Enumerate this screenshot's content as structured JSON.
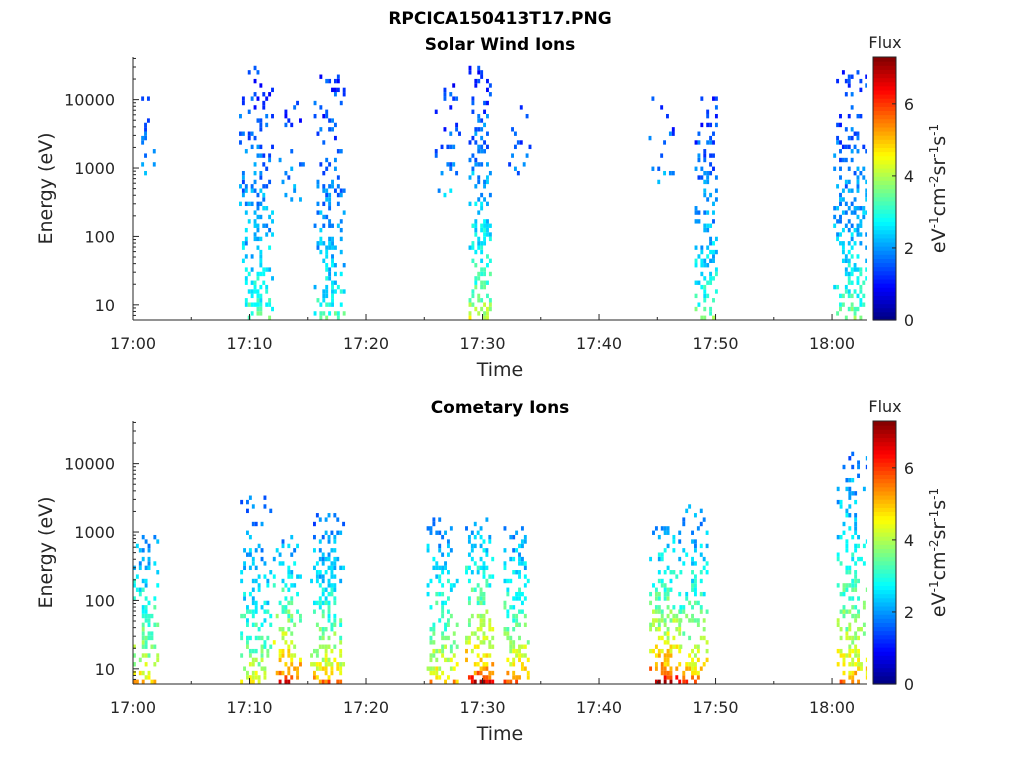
{
  "figure_title": "RPCICA150413T17.PNG",
  "chart_data": [
    {
      "type": "heatmap",
      "title": "Solar Wind Ions",
      "xlabel": "Time",
      "ylabel": "Energy (eV)",
      "x_ticks": [
        "17:00",
        "17:10",
        "17:20",
        "17:30",
        "17:40",
        "17:50",
        "18:00"
      ],
      "x_range_minutes": [
        0,
        63
      ],
      "y_scale": "log",
      "y_ticks": [
        "10",
        "100",
        "1000",
        "10000"
      ],
      "y_range": [
        6,
        42000
      ],
      "colorbar": {
        "label": "Flux",
        "unit_label": "eV-1cm-2sr-1s-1",
        "ticks": [
          "0",
          "2",
          "4",
          "6"
        ],
        "range": [
          0,
          7.3
        ]
      },
      "colormap": "jet",
      "bursts": [
        {
          "t_center_min": 1.0,
          "t_width_min": 1.6,
          "e_low": 300,
          "e_high": 12000,
          "flux_low": 3.2,
          "flux_high": 1.2,
          "density": 0.18
        },
        {
          "t_center_min": 10.6,
          "t_width_min": 3.0,
          "e_low": 6,
          "e_high": 30000,
          "flux_low": 3.6,
          "flux_high": 1.2,
          "density": 0.45
        },
        {
          "t_center_min": 13.5,
          "t_width_min": 2.5,
          "e_low": 300,
          "e_high": 12000,
          "flux_low": 2.5,
          "flux_high": 1.2,
          "density": 0.15
        },
        {
          "t_center_min": 16.8,
          "t_width_min": 2.6,
          "e_low": 6,
          "e_high": 25000,
          "flux_low": 3.4,
          "flux_high": 1.2,
          "density": 0.45
        },
        {
          "t_center_min": 27.0,
          "t_width_min": 2.2,
          "e_low": 300,
          "e_high": 15000,
          "flux_low": 2.6,
          "flux_high": 1.2,
          "density": 0.25
        },
        {
          "t_center_min": 29.8,
          "t_width_min": 2.0,
          "e_low": 6,
          "e_high": 40000,
          "flux_low": 4.4,
          "flux_high": 1.2,
          "density": 0.6
        },
        {
          "t_center_min": 33.2,
          "t_width_min": 2.0,
          "e_low": 600,
          "e_high": 8000,
          "flux_low": 2.0,
          "flux_high": 1.2,
          "density": 0.25
        },
        {
          "t_center_min": 45.5,
          "t_width_min": 3.0,
          "e_low": 500,
          "e_high": 12000,
          "flux_low": 2.4,
          "flux_high": 1.2,
          "density": 0.15
        },
        {
          "t_center_min": 49.2,
          "t_width_min": 2.0,
          "e_low": 6,
          "e_high": 10000,
          "flux_low": 3.8,
          "flux_high": 1.2,
          "density": 0.55
        },
        {
          "t_center_min": 61.6,
          "t_width_min": 3.0,
          "e_low": 6,
          "e_high": 25000,
          "flux_low": 3.8,
          "flux_high": 1.2,
          "density": 0.55
        }
      ]
    },
    {
      "type": "heatmap",
      "title": "Cometary Ions",
      "xlabel": "Time",
      "ylabel": "Energy (eV)",
      "x_ticks": [
        "17:00",
        "17:10",
        "17:20",
        "17:30",
        "17:40",
        "17:50",
        "18:00"
      ],
      "x_range_minutes": [
        0,
        63
      ],
      "y_scale": "log",
      "y_ticks": [
        "10",
        "100",
        "1000",
        "10000"
      ],
      "y_range": [
        6,
        42000
      ],
      "colorbar": {
        "label": "Flux",
        "unit_label": "eV-1cm-2sr-1s-1",
        "ticks": [
          "0",
          "2",
          "4",
          "6"
        ],
        "range": [
          0,
          7.3
        ]
      },
      "colormap": "jet",
      "bursts": [
        {
          "t_center_min": 1.1,
          "t_width_min": 2.2,
          "e_low": 6,
          "e_high": 900,
          "flux_low": 5.2,
          "flux_high": 2.0,
          "density": 0.55
        },
        {
          "t_center_min": 10.5,
          "t_width_min": 2.6,
          "e_low": 6,
          "e_high": 3000,
          "flux_low": 4.8,
          "flux_high": 1.6,
          "density": 0.55
        },
        {
          "t_center_min": 13.2,
          "t_width_min": 2.4,
          "e_low": 6,
          "e_high": 800,
          "flux_low": 6.6,
          "flux_high": 2.0,
          "density": 0.6
        },
        {
          "t_center_min": 16.6,
          "t_width_min": 2.8,
          "e_low": 6,
          "e_high": 2000,
          "flux_low": 5.6,
          "flux_high": 1.6,
          "density": 0.6
        },
        {
          "t_center_min": 26.5,
          "t_width_min": 2.6,
          "e_low": 6,
          "e_high": 1500,
          "flux_low": 5.2,
          "flux_high": 2.0,
          "density": 0.6
        },
        {
          "t_center_min": 29.7,
          "t_width_min": 2.4,
          "e_low": 6,
          "e_high": 1500,
          "flux_low": 6.6,
          "flux_high": 2.0,
          "density": 0.7
        },
        {
          "t_center_min": 32.9,
          "t_width_min": 2.2,
          "e_low": 6,
          "e_high": 1200,
          "flux_low": 6.0,
          "flux_high": 1.8,
          "density": 0.6
        },
        {
          "t_center_min": 45.6,
          "t_width_min": 2.6,
          "e_low": 6,
          "e_high": 1200,
          "flux_low": 6.8,
          "flux_high": 2.0,
          "density": 0.7
        },
        {
          "t_center_min": 48.1,
          "t_width_min": 2.4,
          "e_low": 6,
          "e_high": 2500,
          "flux_low": 5.8,
          "flux_high": 1.8,
          "density": 0.55
        },
        {
          "t_center_min": 61.7,
          "t_width_min": 2.6,
          "e_low": 6,
          "e_high": 13000,
          "flux_low": 5.6,
          "flux_high": 1.8,
          "density": 0.55
        }
      ]
    }
  ]
}
